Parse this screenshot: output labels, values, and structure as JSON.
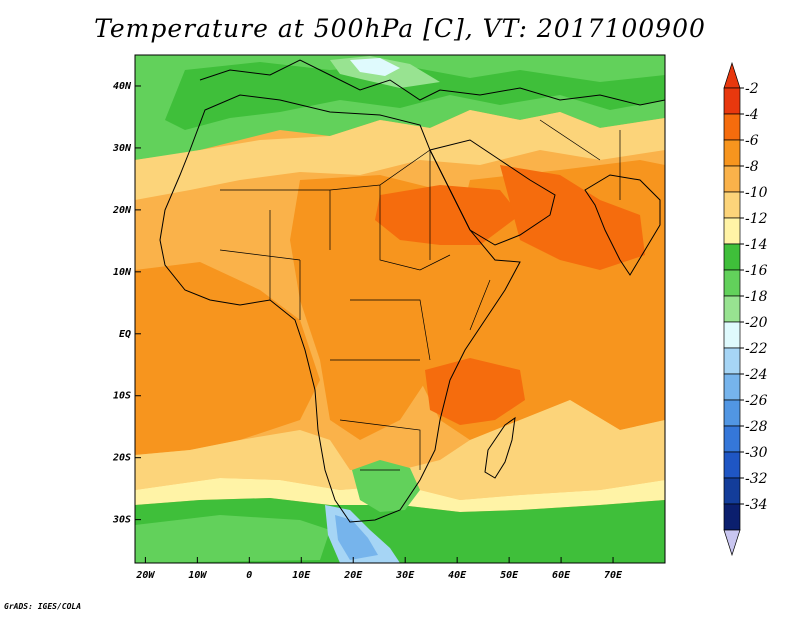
{
  "title": "Temperature at 500hPa [C], VT: 2017100900",
  "credit": "GrADS: IGES/COLA",
  "map": {
    "lon_range": [
      -22,
      80
    ],
    "lat_range": [
      -37,
      45
    ],
    "x_ticks": [
      "20W",
      "10W",
      "0",
      "10E",
      "20E",
      "30E",
      "40E",
      "50E",
      "60E",
      "70E"
    ],
    "y_ticks": [
      "40N",
      "30N",
      "20N",
      "10N",
      "EQ",
      "10S",
      "20S",
      "30S"
    ]
  },
  "colorbar": {
    "labels": [
      "-2",
      "-4",
      "-6",
      "-8",
      "-10",
      "-12",
      "-14",
      "-16",
      "-18",
      "-20",
      "-22",
      "-24",
      "-26",
      "-28",
      "-30",
      "-32",
      "-34"
    ],
    "colors": [
      "#e8380e",
      "#f56c0d",
      "#f7951e",
      "#fab24a",
      "#fcd47a",
      "#fff3a6",
      "#3fbf3a",
      "#62d15b",
      "#98e391",
      "#dffafd",
      "#a6d5f5",
      "#76b4ec",
      "#5196e3",
      "#3577d9",
      "#1f56c4",
      "#133d9a",
      "#0b1f6e"
    ],
    "top_arrow_color": "#e8380e",
    "bottom_arrow_color": "#c9c6f0"
  },
  "colors": {
    "frame": "#000000",
    "ocean_warm": "#f7951e",
    "ocean_mid": "#fab24a",
    "hot_core": "#f56c0d",
    "north_green": "#3fbf3a"
  }
}
